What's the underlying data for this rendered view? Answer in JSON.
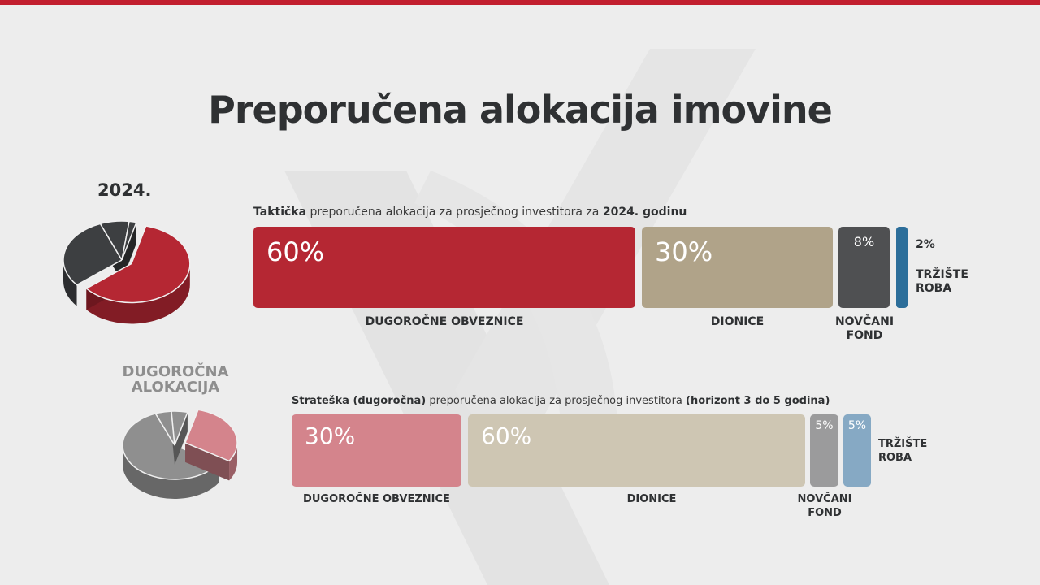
{
  "title": "Preporučena alokacija imovine",
  "tactical": {
    "year_label": "2024.",
    "subtitle": {
      "bold_start": "Taktička",
      "mid": " preporučena alokacija za prosječnog investitora za ",
      "bold_end": "2024. godinu"
    },
    "colors": [
      "#b52733",
      "#b0a389",
      "#4f5052",
      "#2c6e9a"
    ]
  },
  "strategic": {
    "section_label": "DUGOROČNA ALOKACIJA",
    "subtitle": {
      "bold_start": "Strateška (dugoročna)",
      "mid": " preporučena alokacija za prosječnog investitora ",
      "bold_end": "(horizont 3 do 5 godina)"
    },
    "colors": [
      "#d4848c",
      "#cec6b3",
      "#9b9b9c",
      "#86a9c4"
    ]
  },
  "chart_data": [
    {
      "type": "bar",
      "title": "",
      "categories": [
        "DUGOROČNE OBVEZNICE",
        "DIONICE",
        "NOVČANI FOND",
        "TRŽIŠTE ROBA"
      ],
      "values": [
        60,
        30,
        8,
        2
      ],
      "labels": [
        "60%",
        "30%",
        "8%",
        "2%"
      ],
      "unit": "%"
    },
    {
      "type": "bar",
      "title": "",
      "categories": [
        "DUGOROČNE OBVEZNICE",
        "DIONICE",
        "NOVČANI FOND",
        "TRŽIŠTE ROBA"
      ],
      "values": [
        30,
        60,
        5,
        5
      ],
      "labels": [
        "30%",
        "60%",
        "5%",
        "5%"
      ],
      "unit": "%"
    },
    {
      "type": "pie",
      "title": "",
      "categories": [
        "DUGOROČNE OBVEZNICE",
        "DIONICE",
        "NOVČANI FOND",
        "TRŽIŠTE ROBA"
      ],
      "values": [
        60,
        30,
        8,
        2
      ]
    },
    {
      "type": "pie",
      "title": "",
      "categories": [
        "DUGOROČNE OBVEZNICE",
        "DIONICE",
        "NOVČANI FOND",
        "TRŽIŠTE ROBA"
      ],
      "values": [
        30,
        60,
        5,
        5
      ]
    }
  ]
}
